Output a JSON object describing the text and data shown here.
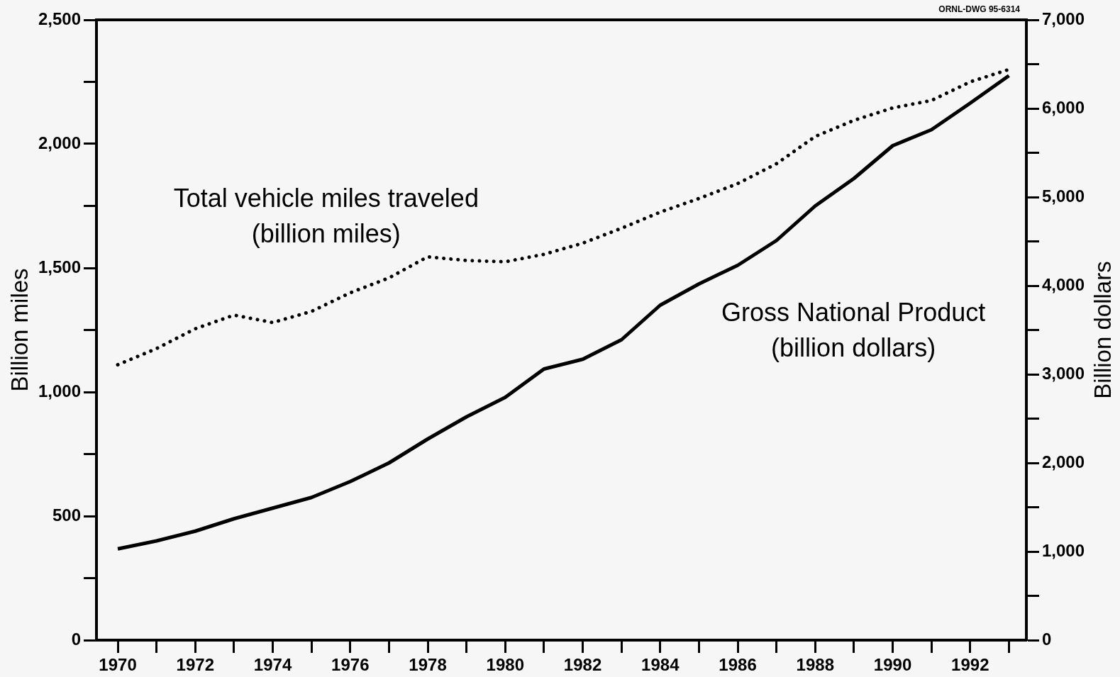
{
  "chart_data": {
    "type": "line",
    "x": [
      1970,
      1971,
      1972,
      1973,
      1974,
      1975,
      1976,
      1977,
      1978,
      1979,
      1980,
      1981,
      1982,
      1983,
      1984,
      1985,
      1986,
      1987,
      1988,
      1989,
      1990,
      1991,
      1992,
      1993
    ],
    "series": [
      {
        "name": "Total vehicle miles traveled (billion miles)",
        "color": "#000000",
        "line_style": "dotted",
        "values": [
          1110,
          1175,
          1255,
          1310,
          1280,
          1325,
          1400,
          1460,
          1545,
          1530,
          1525,
          1555,
          1600,
          1660,
          1725,
          1780,
          1840,
          1920,
          2030,
          2095,
          2145,
          2175,
          2250,
          2300
        ]
      },
      {
        "name": "Gross National Product (billion dollars)",
        "color": "#000000",
        "line_style": "solid",
        "axis": "y2",
        "values": [
          1030,
          1120,
          1230,
          1370,
          1490,
          1610,
          1790,
          2000,
          2270,
          2520,
          2740,
          3060,
          3170,
          3390,
          3780,
          4020,
          4230,
          4510,
          4900,
          5210,
          5580,
          5760,
          6060,
          6370
        ]
      }
    ],
    "ylabel": "Billion miles",
    "y2label": "Billion dollars",
    "xlim": [
      1969.45,
      1993.45
    ],
    "xticks": [
      1970,
      {
        "value": 1971,
        "label": null
      },
      1972,
      {
        "value": 1973,
        "label": null
      },
      1974,
      {
        "value": 1975,
        "label": null
      },
      1976,
      {
        "value": 1977,
        "label": null
      },
      1978,
      {
        "value": 1979,
        "label": null
      },
      1980,
      {
        "value": 1981,
        "label": null
      },
      1982,
      {
        "value": 1983,
        "label": null
      },
      1984,
      {
        "value": 1985,
        "label": null
      },
      1986,
      {
        "value": 1987,
        "label": null
      },
      1988,
      {
        "value": 1989,
        "label": null
      },
      1990,
      {
        "value": 1991,
        "label": null
      },
      1992,
      {
        "value": 1993,
        "label": null
      }
    ],
    "ylim": [
      0,
      2500
    ],
    "yticks": [
      0,
      {
        "value": 250,
        "label": null
      },
      500,
      {
        "value": 750,
        "label": null
      },
      {
        "value": 1000,
        "label": "1,000"
      },
      {
        "value": 1250,
        "label": null
      },
      {
        "value": 1500,
        "label": "1,500"
      },
      {
        "value": 1750,
        "label": null
      },
      {
        "value": 2000,
        "label": "2,000"
      },
      {
        "value": 2250,
        "label": null
      },
      {
        "value": 2500,
        "label": "2,500"
      }
    ],
    "y2lim": [
      0,
      7000
    ],
    "y2ticks": [
      0,
      {
        "value": 500,
        "label": null
      },
      {
        "value": 1000,
        "label": "1,000"
      },
      {
        "value": 1500,
        "label": null
      },
      {
        "value": 2000,
        "label": "2,000"
      },
      {
        "value": 2500,
        "label": null
      },
      {
        "value": 3000,
        "label": "3,000"
      },
      {
        "value": 3500,
        "label": null
      },
      {
        "value": 4000,
        "label": "4,000"
      },
      {
        "value": 4500,
        "label": null
      },
      {
        "value": 5000,
        "label": "5,000"
      },
      {
        "value": 5500,
        "label": null
      },
      {
        "value": 6000,
        "label": "6,000"
      },
      {
        "value": 6500,
        "label": null
      },
      {
        "value": 7000,
        "label": "7,000"
      }
    ],
    "marker": "none",
    "annotations": [
      "ORNL-DWG 95-6314"
    ]
  }
}
